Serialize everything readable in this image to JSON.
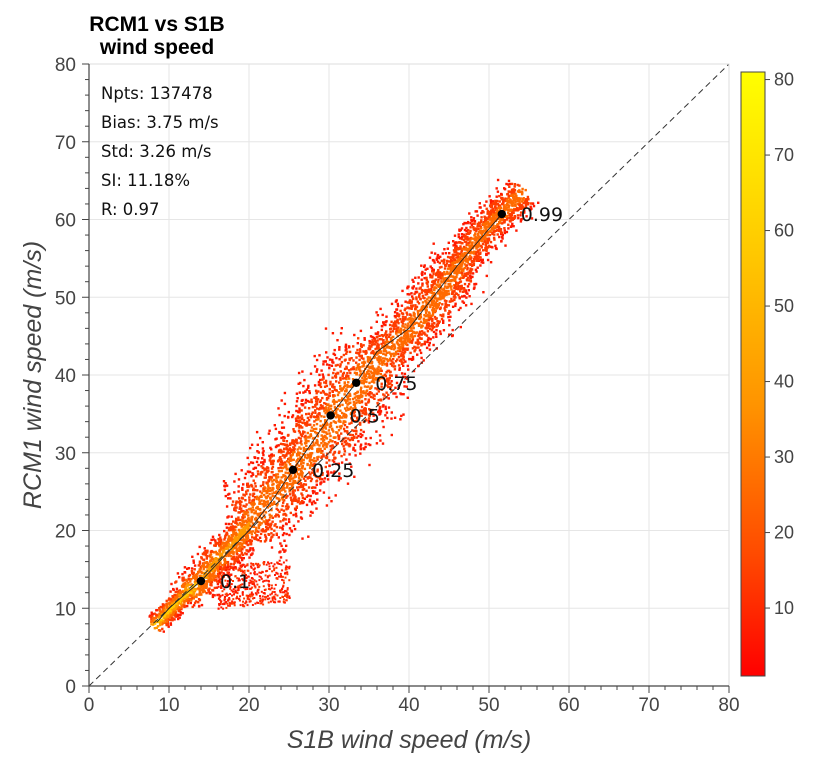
{
  "chart_data": {
    "type": "heatmap",
    "title_lines": [
      "RCM1 vs S1B",
      "wind speed"
    ],
    "xlabel": "S1B wind speed (m/s)",
    "ylabel": "RCM1 wind speed (m/s)",
    "xlim": [
      0,
      80
    ],
    "ylim": [
      0,
      80
    ],
    "xticks": [
      "0",
      "10",
      "20",
      "30",
      "40",
      "50",
      "60",
      "70",
      "80"
    ],
    "yticks": [
      "0",
      "10",
      "20",
      "30",
      "40",
      "50",
      "60",
      "70",
      "80"
    ],
    "grid": true,
    "reference_line": "1:1 dashed diagonal",
    "stats": [
      {
        "label": "Npts",
        "text": "Npts: 137478"
      },
      {
        "label": "Bias",
        "text": "Bias: 3.75 m/s"
      },
      {
        "label": "Std",
        "text": "Std: 3.26 m/s"
      },
      {
        "label": "SI",
        "text": "SI: 11.18%"
      },
      {
        "label": "R",
        "text": "R: 0.97"
      }
    ],
    "quantiles": [
      {
        "label": "0.1",
        "x": 14.0,
        "y": 13.5
      },
      {
        "label": "0.25",
        "x": 25.5,
        "y": 27.8
      },
      {
        "label": "0.5",
        "x": 30.2,
        "y": 34.8
      },
      {
        "label": "0.75",
        "x": 33.4,
        "y": 39.0
      },
      {
        "label": "0.99",
        "x": 51.6,
        "y": 60.7
      }
    ],
    "quantile_curve": [
      [
        8.5,
        8.2
      ],
      [
        10,
        10
      ],
      [
        12,
        11.8
      ],
      [
        14,
        13.5
      ],
      [
        17,
        16.8
      ],
      [
        20,
        20
      ],
      [
        23,
        24
      ],
      [
        25.5,
        27.8
      ],
      [
        28,
        31.5
      ],
      [
        30.2,
        34.8
      ],
      [
        33.4,
        39
      ],
      [
        36,
        43
      ],
      [
        40,
        46
      ],
      [
        43,
        50
      ],
      [
        46,
        54
      ],
      [
        48.5,
        57
      ],
      [
        51.6,
        60.7
      ]
    ],
    "density_ridge": [
      [
        8.5,
        8.3
      ],
      [
        10,
        10
      ],
      [
        12,
        12
      ],
      [
        14,
        13.8
      ],
      [
        16,
        16.5
      ],
      [
        18,
        18.5
      ],
      [
        20,
        21
      ],
      [
        23,
        25
      ],
      [
        26,
        28.5
      ],
      [
        28,
        31.5
      ],
      [
        30,
        34
      ],
      [
        32,
        37
      ],
      [
        34,
        39.5
      ],
      [
        36,
        42
      ],
      [
        38,
        44
      ],
      [
        40,
        46
      ],
      [
        42,
        48.5
      ],
      [
        44,
        51
      ],
      [
        46,
        54
      ],
      [
        48,
        57
      ],
      [
        50,
        59.5
      ],
      [
        52,
        61.5
      ],
      [
        54,
        63.5
      ]
    ],
    "colorbar": {
      "ticks": [
        "10",
        "20",
        "30",
        "40",
        "50",
        "60",
        "70",
        "80"
      ],
      "range": [
        1,
        81
      ],
      "colormap": [
        "#ff0000",
        "#ff4400",
        "#ff8800",
        "#ffbb00",
        "#ffdd00",
        "#ffff00"
      ]
    }
  }
}
